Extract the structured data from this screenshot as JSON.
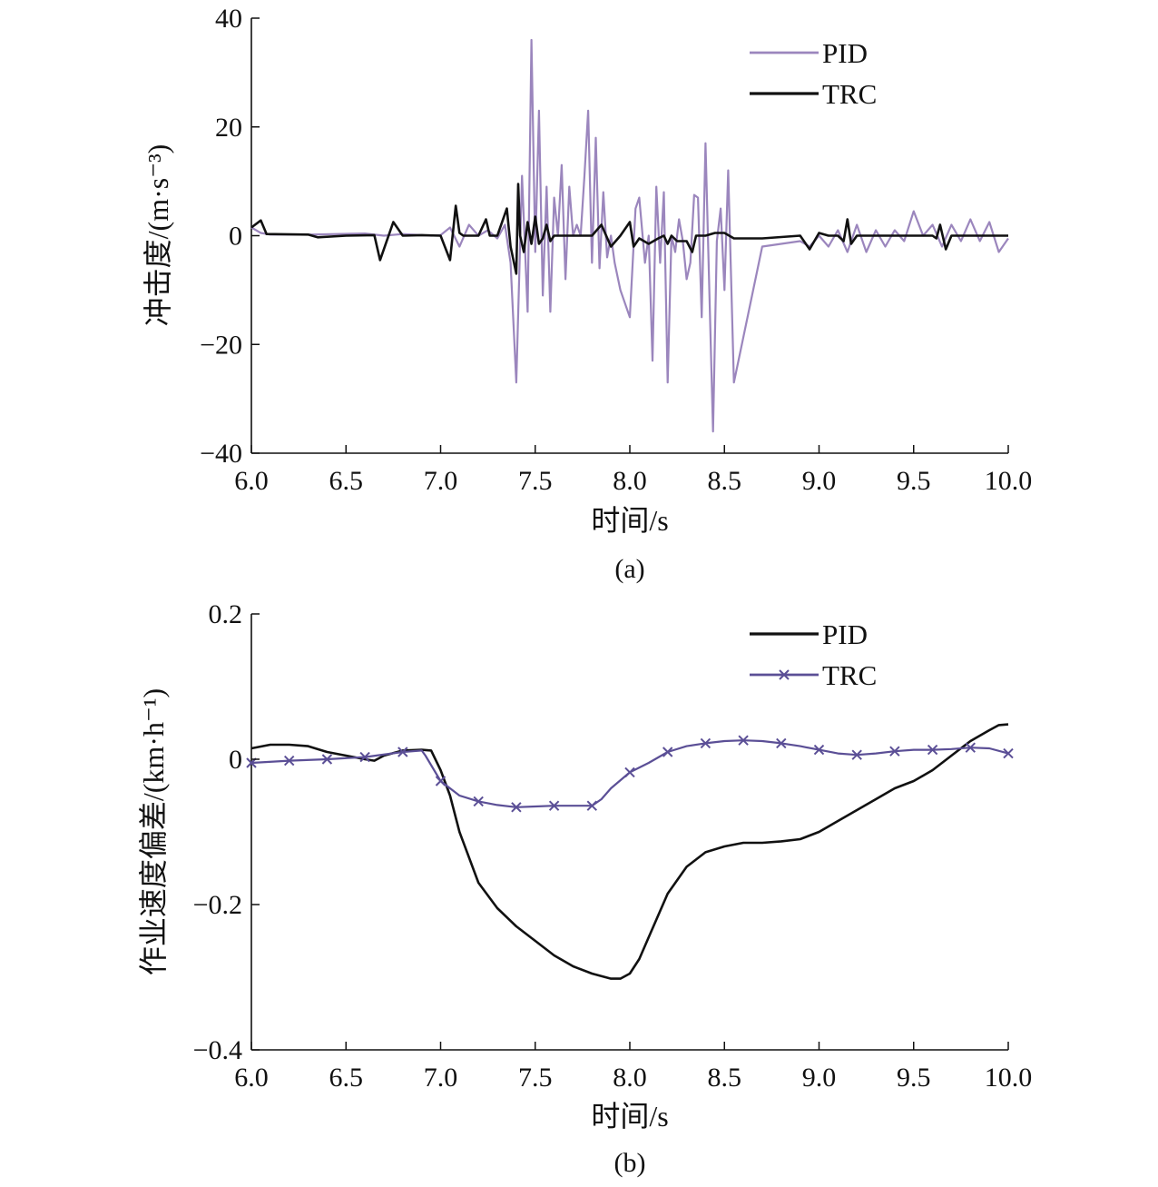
{
  "chart_data": [
    {
      "type": "line",
      "panel_label": "(a)",
      "xlabel": "时间/s",
      "ylabel": "冲击度/(m·s⁻³)",
      "xlim": [
        6.0,
        10.0
      ],
      "ylim": [
        -40,
        40
      ],
      "x_ticks": [
        "6.0",
        "6.5",
        "7.0",
        "7.5",
        "8.0",
        "8.5",
        "9.0",
        "9.5",
        "10.0"
      ],
      "y_ticks": [
        "40",
        "20",
        "0",
        "−20",
        "−40"
      ],
      "legend_position": "top-right",
      "series": [
        {
          "name": "PID",
          "color": "#9b86bd",
          "marker": "none",
          "x": [
            6.0,
            6.05,
            6.1,
            6.3,
            6.6,
            6.7,
            6.8,
            6.95,
            7.0,
            7.05,
            7.1,
            7.15,
            7.2,
            7.25,
            7.3,
            7.34,
            7.37,
            7.4,
            7.43,
            7.46,
            7.48,
            7.5,
            7.52,
            7.54,
            7.56,
            7.58,
            7.6,
            7.62,
            7.64,
            7.66,
            7.68,
            7.7,
            7.72,
            7.74,
            7.76,
            7.78,
            7.8,
            7.82,
            7.84,
            7.86,
            7.88,
            7.9,
            7.92,
            7.95,
            8.0,
            8.03,
            8.05,
            8.08,
            8.1,
            8.12,
            8.14,
            8.16,
            8.18,
            8.2,
            8.22,
            8.24,
            8.26,
            8.28,
            8.3,
            8.32,
            8.34,
            8.36,
            8.38,
            8.4,
            8.42,
            8.44,
            8.46,
            8.48,
            8.5,
            8.52,
            8.55,
            8.7,
            8.9,
            8.95,
            9.0,
            9.05,
            9.1,
            9.15,
            9.2,
            9.25,
            9.3,
            9.35,
            9.4,
            9.45,
            9.5,
            9.55,
            9.6,
            9.65,
            9.7,
            9.75,
            9.8,
            9.85,
            9.9,
            9.95,
            10.0
          ],
          "y": [
            1.5,
            0.5,
            0.2,
            0.2,
            0.4,
            0,
            0.3,
            0,
            0.1,
            1.5,
            -2,
            2,
            0,
            1,
            -0.5,
            2,
            -5,
            -27,
            11,
            -14,
            36,
            -3,
            23,
            -11,
            9,
            -14,
            7,
            0,
            13,
            -8,
            9,
            0,
            2,
            0,
            11,
            23,
            -5,
            18,
            -6,
            8,
            -4,
            0,
            -5,
            -10,
            -15,
            5,
            7,
            -5,
            0,
            -23,
            9,
            -5,
            8,
            -27,
            0,
            -3,
            3,
            -1,
            -8,
            -5,
            7.5,
            7,
            -15,
            17,
            -10,
            -36,
            -1,
            5,
            -10,
            12,
            -27,
            -2,
            -1,
            -2,
            0,
            -2,
            1,
            -3,
            2,
            -3,
            1,
            -2,
            1,
            -1,
            4.5,
            0,
            2,
            -2,
            2,
            -1,
            3,
            -1,
            2.5,
            -3,
            -0.5
          ]
        },
        {
          "name": "TRC",
          "color": "#111111",
          "marker": "none",
          "x": [
            6.0,
            6.05,
            6.08,
            6.3,
            6.35,
            6.5,
            6.65,
            6.68,
            6.75,
            6.8,
            6.9,
            7.0,
            7.05,
            7.08,
            7.1,
            7.12,
            7.15,
            7.2,
            7.24,
            7.26,
            7.3,
            7.35,
            7.37,
            7.4,
            7.41,
            7.42,
            7.44,
            7.46,
            7.48,
            7.5,
            7.52,
            7.54,
            7.56,
            7.58,
            7.6,
            7.65,
            7.7,
            7.75,
            7.8,
            7.85,
            7.9,
            7.95,
            8.0,
            8.02,
            8.05,
            8.1,
            8.15,
            8.18,
            8.2,
            8.22,
            8.25,
            8.3,
            8.33,
            8.35,
            8.4,
            8.45,
            8.5,
            8.55,
            8.7,
            8.9,
            8.95,
            9.0,
            9.05,
            9.1,
            9.13,
            9.15,
            9.17,
            9.2,
            9.3,
            9.4,
            9.5,
            9.6,
            9.62,
            9.64,
            9.67,
            9.7,
            9.8,
            10.0
          ],
          "y": [
            1.5,
            2.8,
            0.3,
            0.2,
            -0.3,
            0,
            0.1,
            -4.5,
            2.5,
            0,
            0.1,
            0,
            -4.5,
            5.5,
            0.5,
            0,
            0,
            0,
            3,
            0,
            0,
            5,
            -2,
            -7,
            9.5,
            0,
            -3,
            2.5,
            -1.5,
            3.5,
            -1.5,
            -0.5,
            2,
            -1,
            0,
            0,
            0,
            0,
            0,
            2,
            -2,
            0,
            2.5,
            -2,
            -0.5,
            -1.5,
            -0.5,
            0,
            -1.5,
            0,
            -1,
            -1,
            -3,
            0,
            0,
            0.5,
            0.5,
            -0.5,
            -0.5,
            0,
            -2.5,
            0.5,
            0,
            0,
            -1,
            3,
            -1.5,
            0,
            0,
            0,
            0,
            0,
            -0.5,
            2,
            -2.5,
            0,
            0,
            0
          ]
        }
      ]
    },
    {
      "type": "line",
      "panel_label": "(b)",
      "xlabel": "时间/s",
      "ylabel": "作业速度偏差/(km·h⁻¹)",
      "xlim": [
        6.0,
        10.0
      ],
      "ylim": [
        -0.4,
        0.2
      ],
      "x_ticks": [
        "6.0",
        "6.5",
        "7.0",
        "7.5",
        "8.0",
        "8.5",
        "9.0",
        "9.5",
        "10.0"
      ],
      "y_ticks": [
        "0.2",
        "0",
        "−0.2",
        "−0.4"
      ],
      "legend_position": "top-right",
      "series": [
        {
          "name": "PID",
          "color": "#111111",
          "marker": "none",
          "x": [
            6.0,
            6.1,
            6.2,
            6.3,
            6.4,
            6.5,
            6.6,
            6.65,
            6.7,
            6.8,
            6.9,
            6.95,
            7.0,
            7.05,
            7.1,
            7.2,
            7.3,
            7.4,
            7.5,
            7.6,
            7.7,
            7.8,
            7.9,
            7.95,
            8.0,
            8.05,
            8.1,
            8.2,
            8.3,
            8.4,
            8.5,
            8.6,
            8.7,
            8.8,
            8.9,
            9.0,
            9.1,
            9.2,
            9.3,
            9.4,
            9.5,
            9.6,
            9.7,
            9.8,
            9.9,
            9.95,
            10.0
          ],
          "y": [
            0.015,
            0.02,
            0.02,
            0.018,
            0.01,
            0.005,
            0.0,
            -0.002,
            0.005,
            0.012,
            0.013,
            0.012,
            -0.015,
            -0.05,
            -0.1,
            -0.17,
            -0.205,
            -0.23,
            -0.25,
            -0.27,
            -0.285,
            -0.295,
            -0.302,
            -0.302,
            -0.295,
            -0.275,
            -0.245,
            -0.185,
            -0.148,
            -0.128,
            -0.12,
            -0.115,
            -0.115,
            -0.113,
            -0.11,
            -0.1,
            -0.085,
            -0.07,
            -0.055,
            -0.04,
            -0.03,
            -0.015,
            0.005,
            0.025,
            0.04,
            0.047,
            0.048
          ]
        },
        {
          "name": "TRC",
          "color": "#5b4f96",
          "marker": "x",
          "x": [
            6.0,
            6.2,
            6.4,
            6.6,
            6.8,
            6.9,
            6.92,
            7.0,
            7.1,
            7.2,
            7.3,
            7.4,
            7.5,
            7.6,
            7.7,
            7.8,
            7.85,
            7.9,
            8.0,
            8.1,
            8.2,
            8.3,
            8.4,
            8.5,
            8.6,
            8.7,
            8.8,
            8.9,
            9.0,
            9.1,
            9.2,
            9.3,
            9.4,
            9.5,
            9.6,
            9.7,
            9.8,
            9.9,
            10.0
          ],
          "y": [
            -0.005,
            -0.002,
            0.0,
            0.003,
            0.01,
            0.012,
            0.005,
            -0.03,
            -0.05,
            -0.058,
            -0.063,
            -0.066,
            -0.065,
            -0.064,
            -0.064,
            -0.064,
            -0.055,
            -0.04,
            -0.018,
            -0.005,
            0.01,
            0.018,
            0.022,
            0.025,
            0.026,
            0.025,
            0.022,
            0.018,
            0.013,
            0.008,
            0.006,
            0.008,
            0.011,
            0.013,
            0.013,
            0.014,
            0.016,
            0.015,
            0.008
          ]
        }
      ]
    }
  ]
}
